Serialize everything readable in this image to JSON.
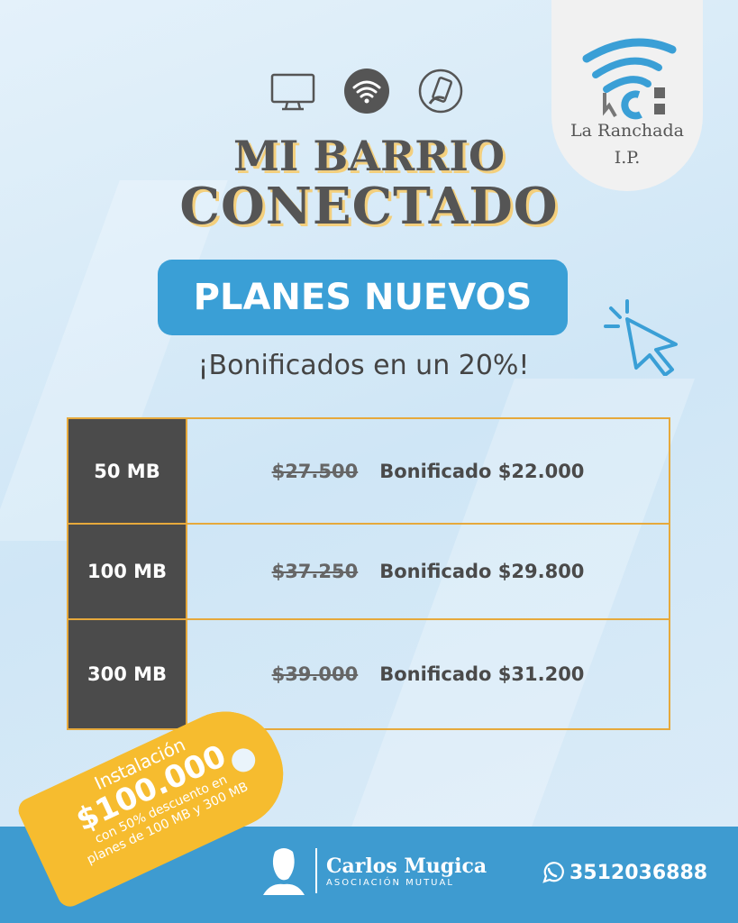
{
  "logo": {
    "name_line1": "La Ranchada",
    "name_line2": "I.P."
  },
  "icons": [
    "monitor-icon",
    "wifi-icon",
    "hand-phone-icon"
  ],
  "title": {
    "line1": "MI BARRIO",
    "line2": "CONECTADO"
  },
  "banner": "PLANES NUEVOS",
  "subtitle": "¡Bonificados en un 20%!",
  "plans": [
    {
      "speed": "50 MB",
      "old_price": "$27.500",
      "new_price": "Bonificado $22.000"
    },
    {
      "speed": "100 MB",
      "old_price": "$37.250",
      "new_price": "Bonificado $29.800"
    },
    {
      "speed": "300 MB",
      "old_price": "$39.000",
      "new_price": "Bonificado $31.200"
    }
  ],
  "tag": {
    "line1": "Instalación",
    "line2": "$100.000",
    "line3": "con 50% descuento en",
    "line4": "planes de 100 MB y 300 MB"
  },
  "footer": {
    "brand_name": "Carlos Mugica",
    "brand_sub": "ASOCIACIÓN MUTUAL",
    "phone": "3512036888"
  },
  "colors": {
    "accent": "#3a9fd6",
    "dark": "#4b4b4b",
    "gold": "#e6a93c",
    "tag": "#f6bc2f",
    "footer": "#3e9bd0"
  }
}
